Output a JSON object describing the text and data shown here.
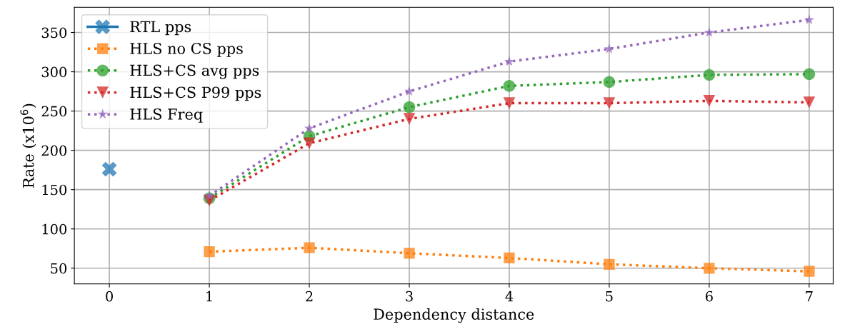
{
  "chart_data": {
    "type": "line",
    "xlabel": "Dependency distance",
    "ylabel": "Rate (x10$^{6}$)",
    "x": [
      0,
      1,
      2,
      3,
      4,
      5,
      6,
      7
    ],
    "series": [
      {
        "name": "RTL pps",
        "color": "#1f77b4",
        "marker": "cross",
        "line_style": "solid",
        "values": [
          176,
          null,
          null,
          null,
          null,
          null,
          null,
          null
        ]
      },
      {
        "name": "HLS no CS pps",
        "color": "#ff7f0e",
        "marker": "square",
        "line_style": "dotted",
        "values": [
          null,
          71,
          76,
          69,
          63,
          55,
          50,
          46
        ]
      },
      {
        "name": "HLS+CS avg pps",
        "color": "#2ca02c",
        "marker": "circle",
        "line_style": "dotted",
        "values": [
          null,
          139,
          218,
          255,
          282,
          287,
          296,
          297
        ]
      },
      {
        "name": "HLS+CS P99 pps",
        "color": "#d62728",
        "marker": "triangle",
        "line_style": "dotted",
        "values": [
          null,
          136,
          209,
          240,
          260,
          260,
          263,
          261
        ]
      },
      {
        "name": "HLS Freq",
        "color": "#9467bd",
        "marker": "star",
        "line_style": "dotted",
        "values": [
          null,
          142,
          228,
          275,
          313,
          329,
          350,
          366
        ]
      }
    ],
    "xlim": [
      -0.35,
      7.24
    ],
    "ylim": [
      30,
      382
    ],
    "xticks": [
      0,
      1,
      2,
      3,
      4,
      5,
      6,
      7
    ],
    "yticks": [
      50,
      100,
      150,
      200,
      250,
      300,
      350
    ],
    "grid": true,
    "legend": "top left"
  }
}
